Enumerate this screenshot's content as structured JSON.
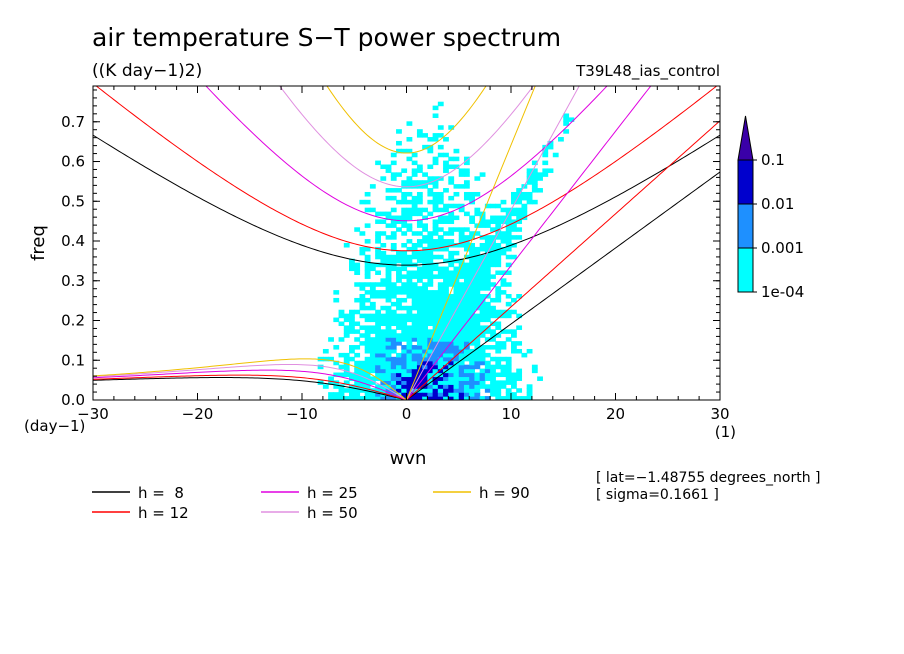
{
  "chart_data": {
    "type": "heatmap",
    "title": "air temperature S−T power spectrum",
    "units": "((K day−1)2)",
    "run_label": "T39L48_ias_control",
    "xlabel": "wvn",
    "ylabel": "freq",
    "x_unit": "(1)",
    "y_unit": "(day−1)",
    "xlim": [
      -30,
      30
    ],
    "ylim": [
      0,
      0.79
    ],
    "x_ticks": [
      -30,
      -20,
      -10,
      0,
      10,
      20,
      30
    ],
    "x_tick_labels": [
      "−30",
      "−20",
      "−10",
      "0",
      "10",
      "20",
      "30"
    ],
    "y_ticks": [
      0,
      0.1,
      0.2,
      0.3,
      0.4,
      0.5,
      0.6,
      0.7
    ],
    "y_tick_labels": [
      "0.0",
      "0.1",
      "0.2",
      "0.3",
      "0.4",
      "0.5",
      "0.6",
      "0.7"
    ],
    "contour_levels": [
      0.0001,
      0.001,
      0.01,
      0.1
    ],
    "colorbar_labels": [
      "1e-04",
      "0.001",
      "0.01",
      "0.1"
    ],
    "colorbar_colors": [
      "#00ffff",
      "#1e90ff",
      "#0000cd",
      "#3a00a8"
    ],
    "dispersion_curves": [
      {
        "name": "h = 8",
        "h": 8,
        "color": "#000000"
      },
      {
        "name": "h = 12",
        "h": 12,
        "color": "#ff0000"
      },
      {
        "name": "h = 25",
        "h": 25,
        "color": "#e000e0"
      },
      {
        "name": "h = 50",
        "h": 50,
        "color": "#e090e0"
      },
      {
        "name": "h = 90",
        "h": 90,
        "color": "#f0c000"
      }
    ],
    "legend": [
      {
        "label": "h =  8",
        "color": "#000000"
      },
      {
        "label": "h = 12",
        "color": "#ff0000"
      },
      {
        "label": "h = 25",
        "color": "#e000e0"
      },
      {
        "label": "h = 50",
        "color": "#e090e0"
      },
      {
        "label": "h = 90",
        "color": "#f0c000"
      }
    ],
    "annotations": [
      "[ lat=−1.48755 degrees_north ]",
      "[ sigma=0.1661 ]"
    ]
  }
}
